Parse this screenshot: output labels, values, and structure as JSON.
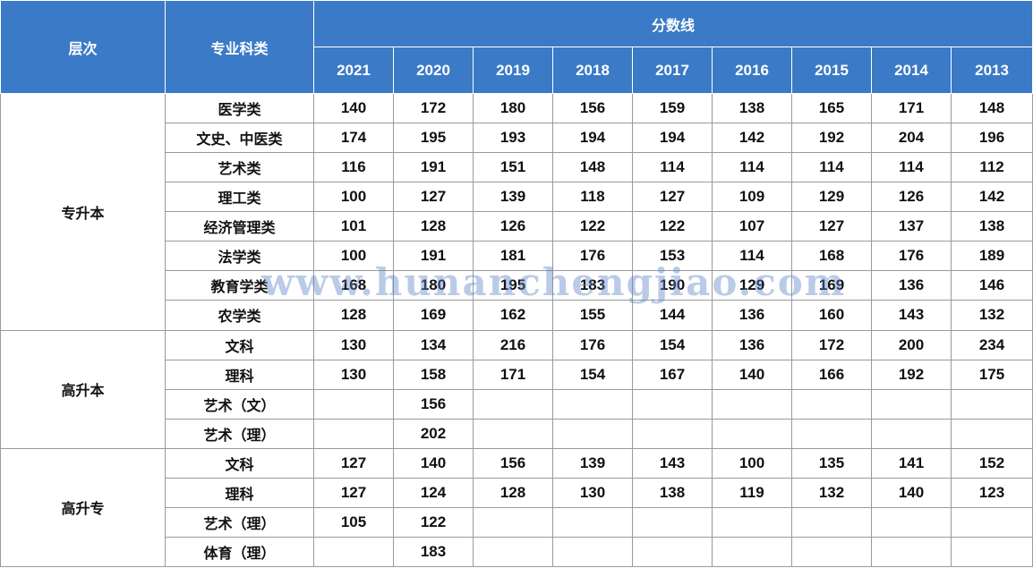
{
  "header": {
    "level_label": "层次",
    "category_label": "专业科类",
    "score_label": "分数线",
    "years": [
      "2021",
      "2020",
      "2019",
      "2018",
      "2017",
      "2016",
      "2015",
      "2014",
      "2013"
    ]
  },
  "groups": [
    {
      "level": "专升本",
      "rows": [
        {
          "category": "医学类",
          "values": [
            "140",
            "172",
            "180",
            "156",
            "159",
            "138",
            "165",
            "171",
            "148"
          ]
        },
        {
          "category": "文史、中医类",
          "values": [
            "174",
            "195",
            "193",
            "194",
            "194",
            "142",
            "192",
            "204",
            "196"
          ]
        },
        {
          "category": "艺术类",
          "values": [
            "116",
            "191",
            "151",
            "148",
            "114",
            "114",
            "114",
            "114",
            "112"
          ]
        },
        {
          "category": "理工类",
          "values": [
            "100",
            "127",
            "139",
            "118",
            "127",
            "109",
            "129",
            "126",
            "142"
          ]
        },
        {
          "category": "经济管理类",
          "values": [
            "101",
            "128",
            "126",
            "122",
            "122",
            "107",
            "127",
            "137",
            "138"
          ]
        },
        {
          "category": "法学类",
          "values": [
            "100",
            "191",
            "181",
            "176",
            "153",
            "114",
            "168",
            "176",
            "189"
          ]
        },
        {
          "category": "教育学类",
          "values": [
            "168",
            "180",
            "195",
            "183",
            "190",
            "129",
            "169",
            "136",
            "146"
          ]
        },
        {
          "category": "农学类",
          "values": [
            "128",
            "169",
            "162",
            "155",
            "144",
            "136",
            "160",
            "143",
            "132"
          ]
        }
      ]
    },
    {
      "level": "高升本",
      "rows": [
        {
          "category": "文科",
          "values": [
            "130",
            "134",
            "216",
            "176",
            "154",
            "136",
            "172",
            "200",
            "234"
          ]
        },
        {
          "category": "理科",
          "values": [
            "130",
            "158",
            "171",
            "154",
            "167",
            "140",
            "166",
            "192",
            "175"
          ]
        },
        {
          "category": "艺术（文）",
          "values": [
            "",
            "156",
            "",
            "",
            "",
            "",
            "",
            "",
            ""
          ]
        },
        {
          "category": "艺术（理）",
          "values": [
            "",
            "202",
            "",
            "",
            "",
            "",
            "",
            "",
            ""
          ]
        }
      ]
    },
    {
      "level": "高升专",
      "rows": [
        {
          "category": "文科",
          "values": [
            "127",
            "140",
            "156",
            "139",
            "143",
            "100",
            "135",
            "141",
            "152"
          ]
        },
        {
          "category": "理科",
          "values": [
            "127",
            "124",
            "128",
            "130",
            "138",
            "119",
            "132",
            "140",
            "123"
          ]
        },
        {
          "category": "艺术（理）",
          "values": [
            "105",
            "122",
            "",
            "",
            "",
            "",
            "",
            "",
            ""
          ]
        },
        {
          "category": "体育（理）",
          "values": [
            "",
            "183",
            "",
            "",
            "",
            "",
            "",
            "",
            ""
          ]
        }
      ]
    }
  ],
  "watermark": "www.hunanchengjiao.com"
}
